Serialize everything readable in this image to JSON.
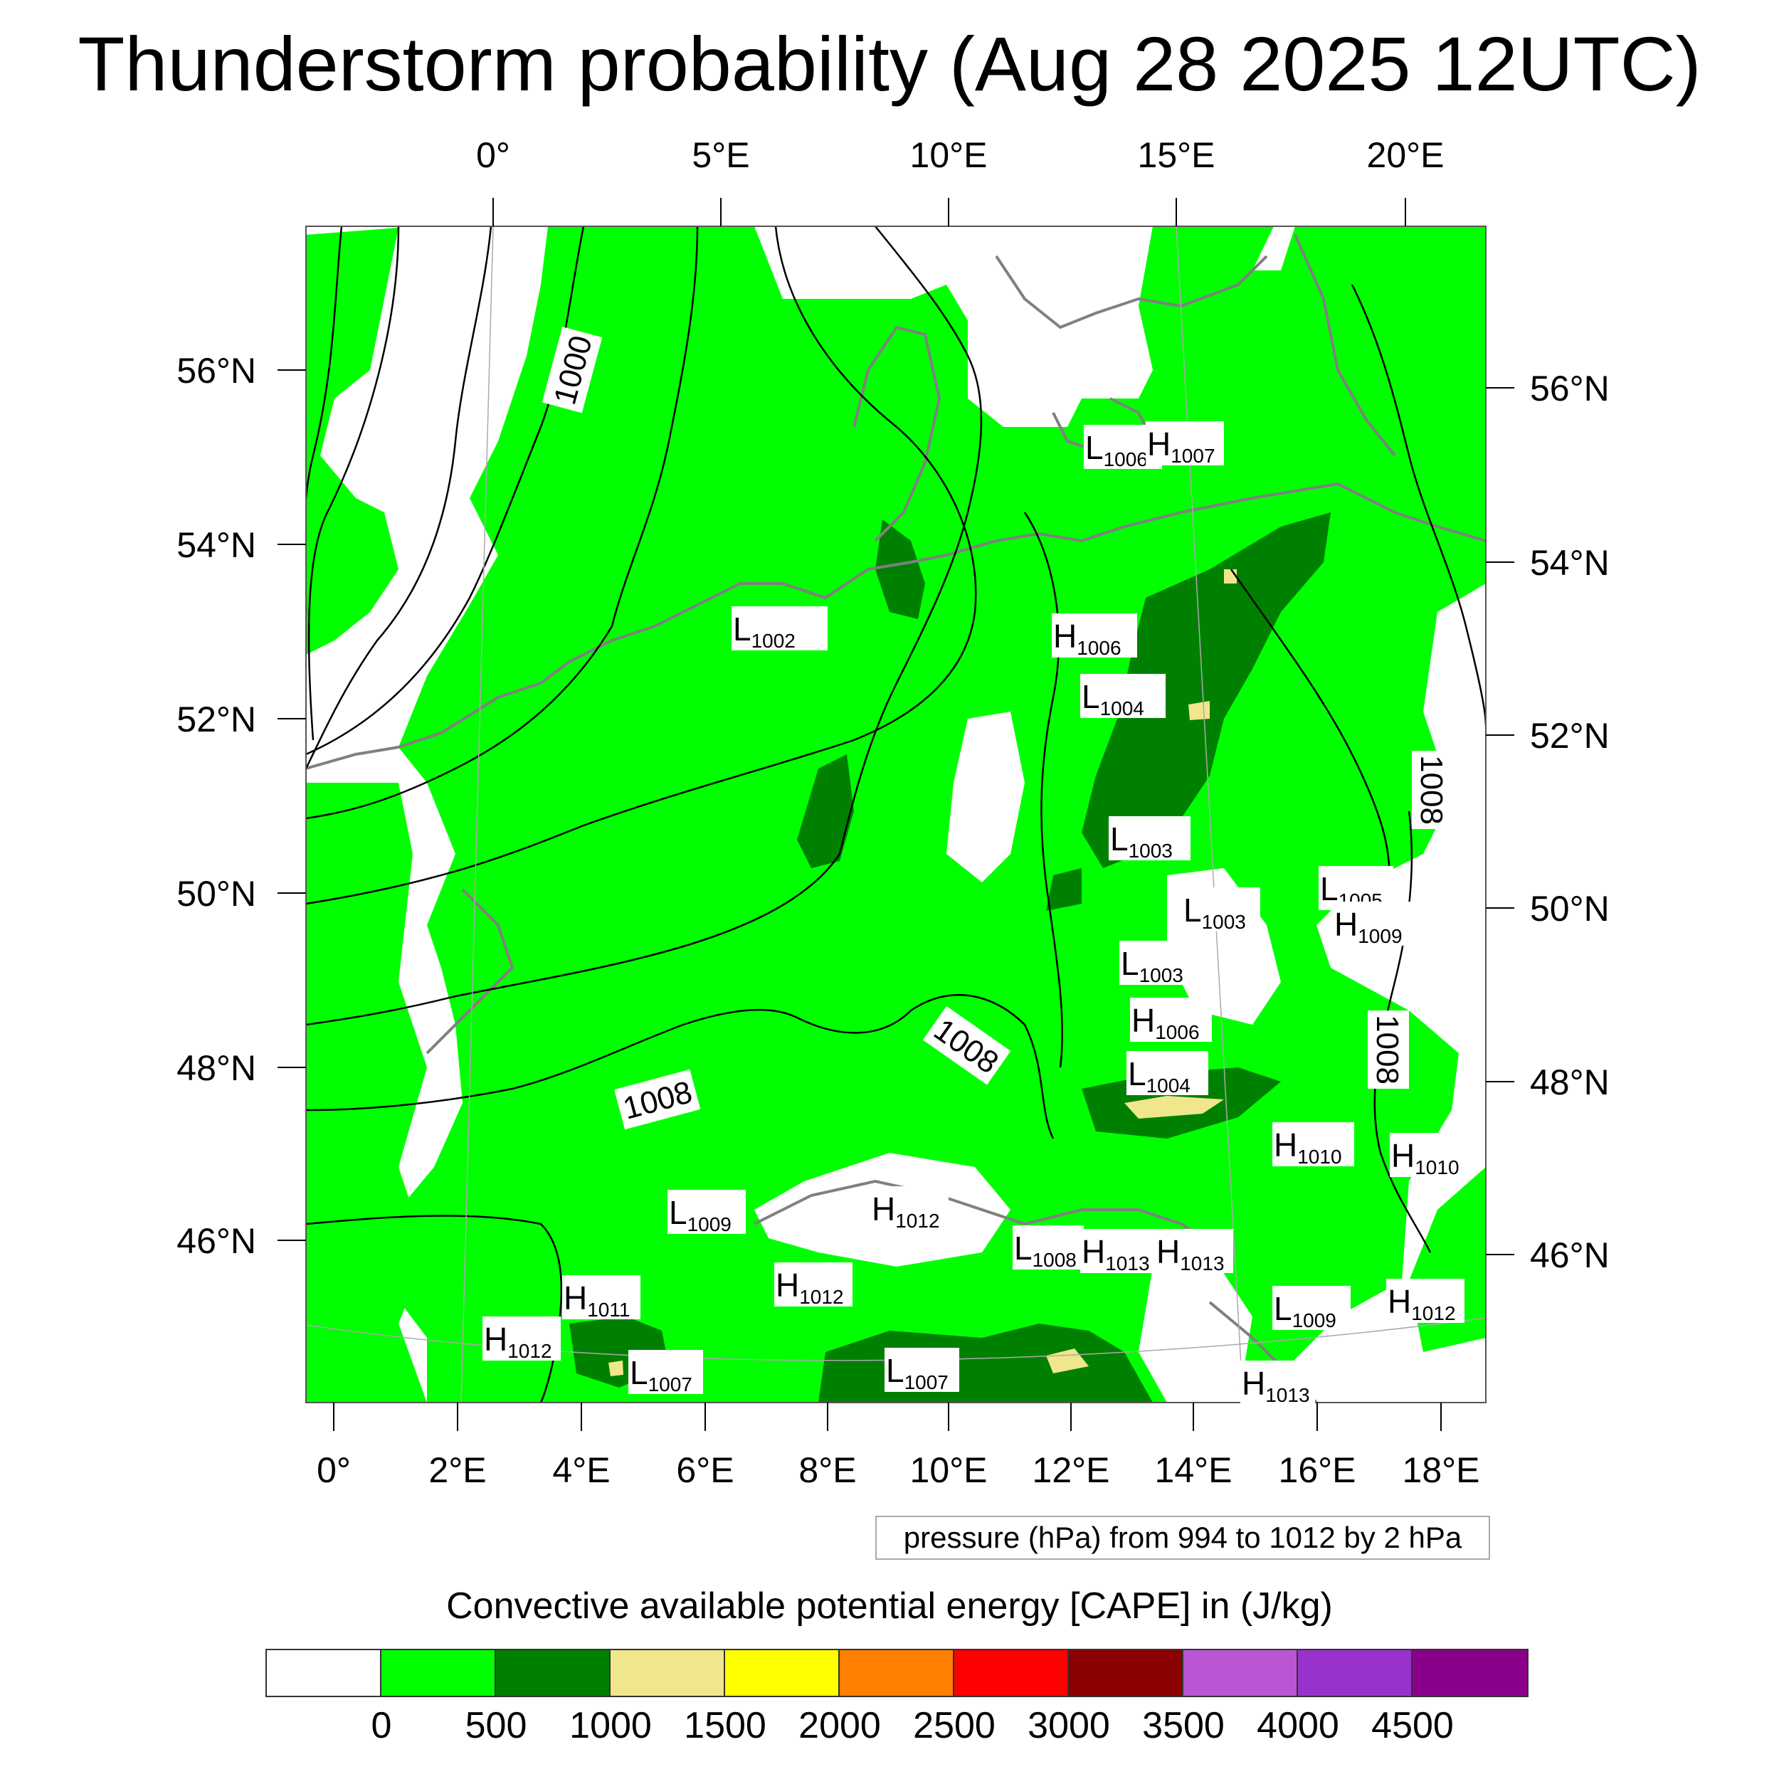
{
  "title": "Thunderstorm probability (Aug 28 2025 12UTC)",
  "top_lon_labels": [
    "0°",
    "5°E",
    "10°E",
    "15°E",
    "20°E"
  ],
  "bottom_lon_labels": [
    "0°",
    "2°E",
    "4°E",
    "6°E",
    "8°E",
    "10°E",
    "12°E",
    "14°E",
    "16°E",
    "18°E"
  ],
  "left_lat_labels": [
    "56°N",
    "54°N",
    "52°N",
    "50°N",
    "48°N",
    "46°N"
  ],
  "right_lat_labels": [
    "56°N",
    "54°N",
    "52°N",
    "50°N",
    "48°N",
    "46°N"
  ],
  "isobar_labels": [
    "1000",
    "1008",
    "1008",
    "1008",
    "1008"
  ],
  "pressure_centers": [
    {
      "kind": "L",
      "value": "1002"
    },
    {
      "kind": "L",
      "value": "1006"
    },
    {
      "kind": "H",
      "value": "1007"
    },
    {
      "kind": "H",
      "value": "1006"
    },
    {
      "kind": "L",
      "value": "1004"
    },
    {
      "kind": "L",
      "value": "1003"
    },
    {
      "kind": "L",
      "value": "1003"
    },
    {
      "kind": "L",
      "value": "1005"
    },
    {
      "kind": "H",
      "value": "1009"
    },
    {
      "kind": "L",
      "value": "1003"
    },
    {
      "kind": "H",
      "value": "1006"
    },
    {
      "kind": "L",
      "value": "1004"
    },
    {
      "kind": "H",
      "value": "1010"
    },
    {
      "kind": "H",
      "value": "1010"
    },
    {
      "kind": "L",
      "value": "1009"
    },
    {
      "kind": "H",
      "value": "1012"
    },
    {
      "kind": "H",
      "value": "1011"
    },
    {
      "kind": "H",
      "value": "1012"
    },
    {
      "kind": "L",
      "value": "1007"
    },
    {
      "kind": "H",
      "value": "1012"
    },
    {
      "kind": "L",
      "value": "1007"
    },
    {
      "kind": "L",
      "value": "1008"
    },
    {
      "kind": "H",
      "value": "1013"
    },
    {
      "kind": "H",
      "value": "1013"
    },
    {
      "kind": "L",
      "value": "1009"
    },
    {
      "kind": "H",
      "value": "1012"
    },
    {
      "kind": "H",
      "value": "1013"
    }
  ],
  "info_box": "pressure (hPa) from 994 to 1012 by 2 hPa",
  "legend": {
    "title": "Convective available potential energy [CAPE] in (J/kg)",
    "colors": [
      "#ffffff",
      "#00ff00",
      "#008000",
      "#f0e68c",
      "#ffff00",
      "#ff8000",
      "#ff0000",
      "#8b0000",
      "#ba55d3",
      "#9932cc",
      "#8b008b"
    ],
    "labels": [
      "0",
      "500",
      "1000",
      "1500",
      "2000",
      "2500",
      "3000",
      "3500",
      "4000",
      "4500"
    ]
  },
  "colors": {
    "cape_low": "#00ff00",
    "cape_mid": "#008000",
    "cape_high": "#f0e68c",
    "coastline": "#808080",
    "isobar": "#000000"
  }
}
